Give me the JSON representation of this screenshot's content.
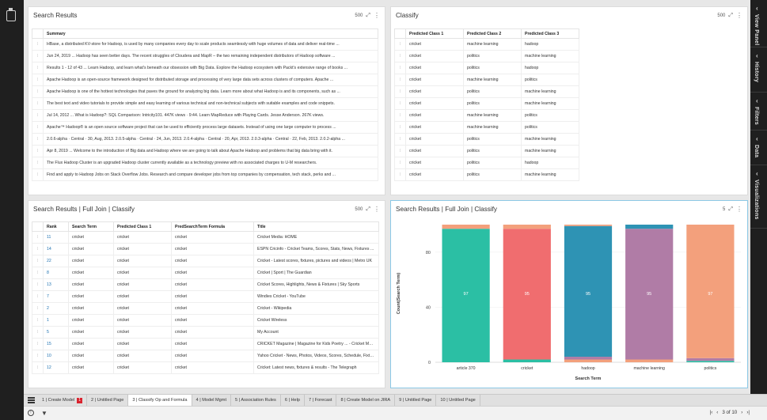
{
  "right_rail": [
    "View Panel",
    "History",
    "Filters",
    "Data",
    "Visualizations"
  ],
  "panels": {
    "search_results": {
      "title": "Search Results",
      "count": "500",
      "header": "Summary",
      "rows": [
        "HBase, a distributed KV-store for Hadoop, is used by many companies every day to scale products seamlessly with huge volumes of data and deliver real-time ...",
        "Jun 24, 2019 ... Hadoop has seen better days. The recent struggles of Cloudera and MapR – the two remaining independent distributors of Hadoop software ...",
        "Results 1 - 12 of 43 ... Learn Hadoop, and learn what's beneath our obsession with Big Data. Explore the Hadoop ecosystem with Packt's extensive range of books ...",
        "Apache Hadoop is an open-source framework designed for distributed storage and processing of very large data sets across clusters of computers. Apache ...",
        "Apache Hadoop is one of the hottest technologies that paves the ground for analyzing big data. Learn more about what Hadoop is and its components, such as ...",
        "The best text and video tutorials to provide simple and easy learning of various technical and non-technical subjects with suitable examples and code snippets.",
        "Jul 14, 2012 ... What is Hadoop?: SQL Comparison: Intricity101. 447K views · 9:44. Learn MapReduce with Playing Cards. Jesse Anderson. 267K views.",
        "Apache™ Hadoop® is an open source software project that can be used to efficiently process large datasets. Instead of using one large computer to process ...",
        "2.0.6-alpha · Central · 30, Aug, 2013. 2.0.5-alpha · Central · 24, Jun, 2013. 2.0.4-alpha · Central · 20, Apr, 2013. 2.0.3-alpha · Central · 22, Feb, 2013. 2.0.2-alpha ...",
        "Apr 8, 2019 ... Welcome to the introduction of Big data and Hadoop where we are going to talk about Apache Hadoop and problems that big data bring with it.",
        "The Flux Hadoop Cluster is an upgraded Hadoop cluster currently available as a technology preview with no associated charges to U-M researchers.",
        "Find and apply to Hadoop Jobs on Stack Overflow Jobs. Research and compare developer jobs from top companies by compensation, tech stack, perks and ..."
      ]
    },
    "classify": {
      "title": "Classify",
      "count": "500",
      "headers": [
        "Predicted Class 1",
        "Predicted Class 2",
        "Predicted Class 3"
      ],
      "rows": [
        [
          "cricket",
          "machine learning",
          "hadoop"
        ],
        [
          "cricket",
          "politics",
          "machine learning"
        ],
        [
          "cricket",
          "politics",
          "hadoop"
        ],
        [
          "cricket",
          "machine learning",
          "politics"
        ],
        [
          "cricket",
          "politics",
          "machine learning"
        ],
        [
          "cricket",
          "politics",
          "machine learning"
        ],
        [
          "cricket",
          "machine learning",
          "politics"
        ],
        [
          "cricket",
          "machine learning",
          "politics"
        ],
        [
          "cricket",
          "politics",
          "machine learning"
        ],
        [
          "cricket",
          "politics",
          "machine learning"
        ],
        [
          "cricket",
          "politics",
          "hadoop"
        ],
        [
          "cricket",
          "politics",
          "machine learning"
        ]
      ]
    },
    "join": {
      "title": "Search Results | Full Join | Classify",
      "count": "500",
      "headers": [
        "Rank",
        "Search Term",
        "Predicted Class 1",
        "PredSearchTerm Formula",
        "Title"
      ],
      "rows": [
        [
          "11",
          "cricket",
          "cricket",
          "cricket",
          "Cricket Media: HOME"
        ],
        [
          "14",
          "cricket",
          "cricket",
          "cricket",
          "ESPN Cricinfo - Cricket Teams, Scores, Stats, News, Fixtures ..."
        ],
        [
          "22",
          "cricket",
          "cricket",
          "cricket",
          "Cricket - Latest scores, fixtures, pictures and videos | Metro UK"
        ],
        [
          "8",
          "cricket",
          "cricket",
          "cricket",
          "Cricket | Sport | The Guardian"
        ],
        [
          "13",
          "cricket",
          "cricket",
          "cricket",
          "Cricket Scores, Highlights, News & Fixtures | Sky Sports"
        ],
        [
          "7",
          "cricket",
          "cricket",
          "cricket",
          "Windies Cricket - YouTube"
        ],
        [
          "2",
          "cricket",
          "cricket",
          "cricket",
          "Cricket - Wikipedia"
        ],
        [
          "1",
          "cricket",
          "cricket",
          "cricket",
          "Cricket Wireless"
        ],
        [
          "5",
          "cricket",
          "cricket",
          "cricket",
          "My Account"
        ],
        [
          "15",
          "cricket",
          "cricket",
          "cricket",
          "CRICKET Magazine | Magazine for Kids Poetry ... - Cricket Media"
        ],
        [
          "10",
          "cricket",
          "cricket",
          "cricket",
          "Yahoo Cricket - News, Photos, Videos, Scores, Schedule, Fixtures ..."
        ],
        [
          "12",
          "cricket",
          "cricket",
          "cricket",
          "Cricket: Latest news, fixtures & results - The Telegraph"
        ]
      ]
    },
    "chart": {
      "title": "Search Results | Full Join | Classify",
      "count": "5"
    }
  },
  "chart_data": {
    "type": "bar",
    "stacked": true,
    "categories": [
      "article 370",
      "cricket",
      "hadoop",
      "machine learning",
      "politics"
    ],
    "values": [
      97,
      95,
      95,
      95,
      97
    ],
    "segments": [
      [
        {
          "v": 97,
          "c": "#2bbfa4"
        },
        {
          "v": 3,
          "c": "#f3a07c"
        }
      ],
      [
        {
          "v": 2,
          "c": "#2bbfa4"
        },
        {
          "v": 95,
          "c": "#f06d6f"
        },
        {
          "v": 3,
          "c": "#f3a07c"
        }
      ],
      [
        {
          "v": 2,
          "c": "#f3a07c"
        },
        {
          "v": 2,
          "c": "#b07ca6"
        },
        {
          "v": 95,
          "c": "#2e93b4"
        },
        {
          "v": 1,
          "c": "#f3a07c"
        }
      ],
      [
        {
          "v": 2,
          "c": "#f3a07c"
        },
        {
          "v": 95,
          "c": "#b07ca6"
        },
        {
          "v": 3,
          "c": "#2e93b4"
        }
      ],
      [
        {
          "v": 1,
          "c": "#2bbfa4"
        },
        {
          "v": 2,
          "c": "#b07ca6"
        },
        {
          "v": 97,
          "c": "#f3a07c"
        }
      ]
    ],
    "xlabel": "Search Term",
    "ylabel": "Count(Search Term)",
    "ylim": [
      0,
      100
    ],
    "yticks": [
      0,
      40,
      80
    ],
    "legend": "none"
  },
  "bottom_tabs": [
    {
      "label": "1 | Create Model",
      "badge": "1"
    },
    {
      "label": "2 | Untitled Page"
    },
    {
      "label": "3 | Classify Op and Formula",
      "active": true
    },
    {
      "label": "4 | Model Mgmt"
    },
    {
      "label": "5 | Association Rules"
    },
    {
      "label": "6 | Help"
    },
    {
      "label": "7 | Forecast"
    },
    {
      "label": "8 | Create Model on JIRA"
    },
    {
      "label": "9 | Untitled Page"
    },
    {
      "label": "10 | Untitled Page"
    }
  ],
  "status": {
    "pager": "3 of 10",
    "info_icon": "info-icon",
    "filter_icon": "filter-icon"
  }
}
